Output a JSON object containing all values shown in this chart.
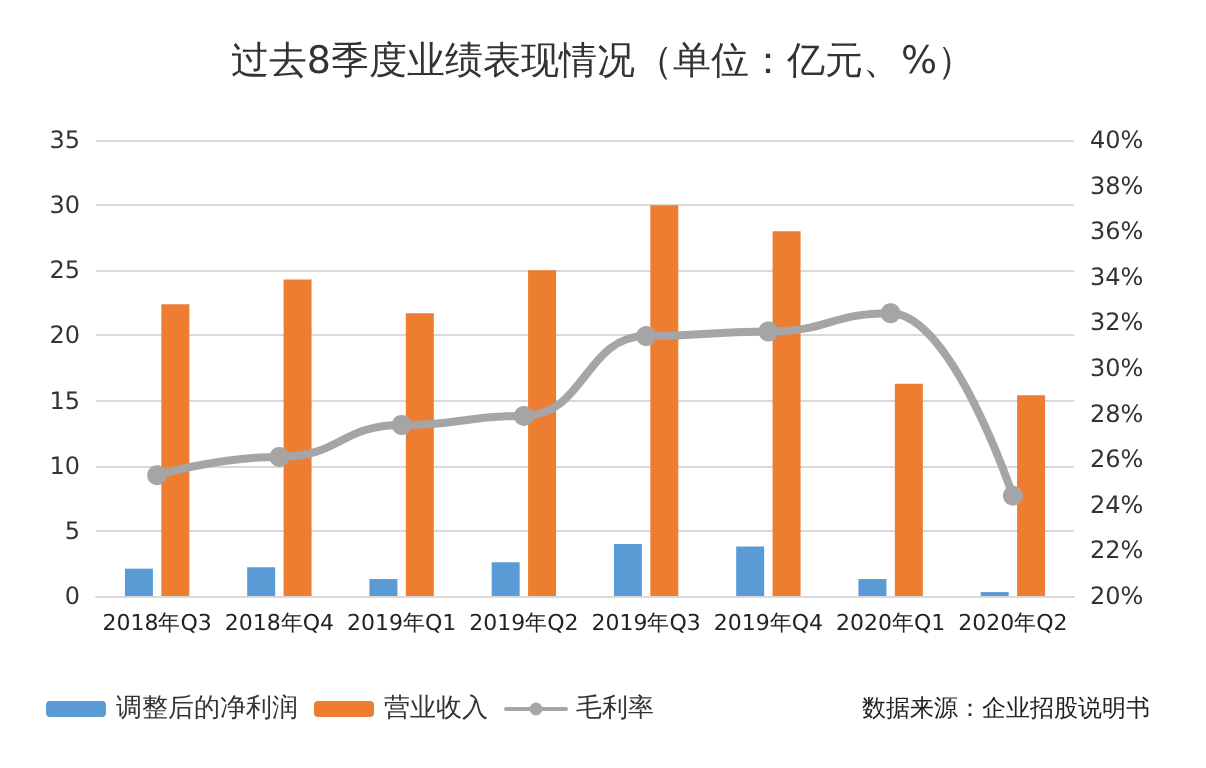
{
  "chart_data": {
    "type": "bar",
    "title": "过去8季度业绩表现情况（单位：亿元、%）",
    "categories": [
      "2018年Q3",
      "2018年Q4",
      "2019年Q1",
      "2019年Q2",
      "2019年Q3",
      "2019年Q4",
      "2020年Q1",
      "2020年Q2"
    ],
    "series": [
      {
        "name": "调整后的净利润",
        "color": "#5b9bd5",
        "values": [
          2.1,
          2.2,
          1.3,
          2.6,
          4.0,
          3.8,
          1.3,
          0.3
        ]
      },
      {
        "name": "营业收入",
        "color": "#ed7d31",
        "values": [
          22.4,
          24.3,
          21.7,
          25.0,
          30.0,
          28.0,
          16.3,
          15.4
        ]
      },
      {
        "name": "毛利率",
        "type": "line",
        "axis": "y2",
        "color": "#a5a5a5",
        "marker": "circle",
        "line_style": "solid",
        "values": [
          25.3,
          26.1,
          27.5,
          27.9,
          31.4,
          31.6,
          32.4,
          24.4
        ]
      }
    ],
    "ylim": [
      0,
      35
    ],
    "yticks": [
      0,
      5,
      10,
      15,
      20,
      25,
      30,
      35
    ],
    "y2lim": [
      20,
      40
    ],
    "y2ticks": [
      {
        "value": 20,
        "label": "20%"
      },
      {
        "value": 22,
        "label": "22%"
      },
      {
        "value": 24,
        "label": "24%"
      },
      {
        "value": 26,
        "label": "26%"
      },
      {
        "value": 28,
        "label": "28%"
      },
      {
        "value": 30,
        "label": "30%"
      },
      {
        "value": 32,
        "label": "32%"
      },
      {
        "value": 34,
        "label": "34%"
      },
      {
        "value": 36,
        "label": "36%"
      },
      {
        "value": 38,
        "label": "38%"
      },
      {
        "value": 40,
        "label": "40%"
      }
    ],
    "grid": "y",
    "legend": "bottom left",
    "annotations": [
      "数据来源：企业招股说明书"
    ]
  }
}
